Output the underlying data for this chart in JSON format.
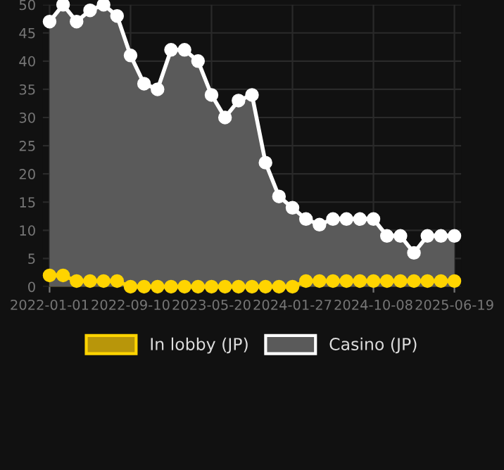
{
  "chart_data": {
    "type": "area",
    "categories": [
      "2022-01-01",
      null,
      null,
      null,
      null,
      null,
      "2022-09-10",
      null,
      null,
      null,
      null,
      null,
      "2023-05-20",
      null,
      null,
      null,
      null,
      null,
      "2024-01-27",
      null,
      null,
      null,
      null,
      null,
      "2024-10-08",
      null,
      null,
      null,
      null,
      null,
      "2025-06-19"
    ],
    "series": [
      {
        "name": "In lobby (JP)",
        "color": "#ffd400",
        "values": [
          2,
          2,
          1,
          1,
          1,
          1,
          0,
          0,
          0,
          0,
          0,
          0,
          0,
          0,
          0,
          0,
          0,
          0,
          0,
          1,
          1,
          1,
          1,
          1,
          1,
          1,
          1,
          1,
          1,
          1,
          1
        ]
      },
      {
        "name": "Casino (JP)",
        "color": "#ffffff",
        "values": [
          47,
          50,
          47,
          49,
          50,
          48,
          41,
          36,
          35,
          42,
          42,
          40,
          34,
          30,
          33,
          34,
          22,
          16,
          14,
          12,
          11,
          12,
          12,
          12,
          12,
          9,
          9,
          6,
          9,
          9,
          9
        ]
      }
    ],
    "ylim": [
      0,
      50
    ],
    "yticks": [
      0,
      5,
      10,
      15,
      20,
      25,
      30,
      35,
      40,
      45,
      50
    ],
    "grid": true,
    "legend": "bottom",
    "marker": "circle"
  }
}
